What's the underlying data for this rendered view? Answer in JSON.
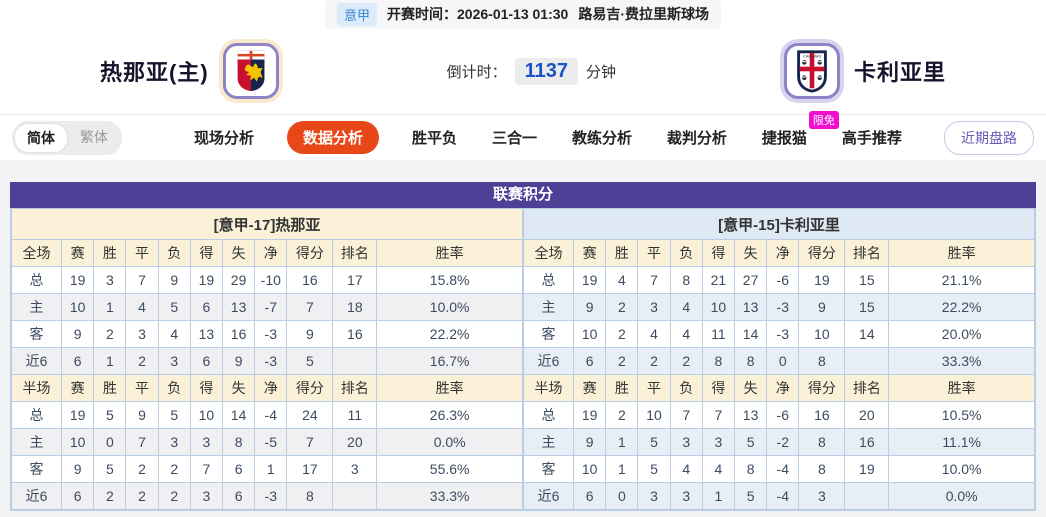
{
  "top_bar": {
    "league": "意甲",
    "kickoff_label": "开赛时间：",
    "kickoff_time": "2026-01-13 01:30",
    "venue": "路易吉·费拉里斯球场"
  },
  "header": {
    "home_team": "热那亚(主)",
    "away_team": "卡利亚里",
    "countdown_label": "倒计时：",
    "countdown_value": "1137",
    "countdown_unit": "分钟"
  },
  "nav": {
    "lang": [
      "简体",
      "繁体"
    ],
    "tabs": [
      {
        "label": "现场分析",
        "active": false
      },
      {
        "label": "数据分析",
        "active": true
      },
      {
        "label": "胜平负",
        "active": false
      },
      {
        "label": "三合一",
        "active": false
      },
      {
        "label": "教练分析",
        "active": false
      },
      {
        "label": "裁判分析",
        "active": false
      },
      {
        "label": "捷报猫",
        "active": false,
        "badge": "限免"
      },
      {
        "label": "高手推荐",
        "active": false
      }
    ],
    "recent_button": "近期盘路"
  },
  "table": {
    "title": "联赛积分",
    "columns": [
      "赛",
      "胜",
      "平",
      "负",
      "得",
      "失",
      "净",
      "得分",
      "排名",
      "胜率"
    ],
    "home": {
      "subtitle": "[意甲-17]热那亚",
      "sections": [
        {
          "scope": "全场",
          "rows": [
            {
              "label": "总",
              "values": [
                "19",
                "3",
                "7",
                "9",
                "19",
                "29",
                "-10",
                "16",
                "17",
                "15.8%"
              ]
            },
            {
              "label": "主",
              "values": [
                "10",
                "1",
                "4",
                "5",
                "6",
                "13",
                "-7",
                "7",
                "18",
                "10.0%"
              ]
            },
            {
              "label": "客",
              "values": [
                "9",
                "2",
                "3",
                "4",
                "13",
                "16",
                "-3",
                "9",
                "16",
                "22.2%"
              ]
            },
            {
              "label": "近6",
              "values": [
                "6",
                "1",
                "2",
                "3",
                "6",
                "9",
                "-3",
                "5",
                "",
                "16.7%"
              ]
            }
          ]
        },
        {
          "scope": "半场",
          "rows": [
            {
              "label": "总",
              "values": [
                "19",
                "5",
                "9",
                "5",
                "10",
                "14",
                "-4",
                "24",
                "11",
                "26.3%"
              ]
            },
            {
              "label": "主",
              "values": [
                "10",
                "0",
                "7",
                "3",
                "3",
                "8",
                "-5",
                "7",
                "20",
                "0.0%"
              ]
            },
            {
              "label": "客",
              "values": [
                "9",
                "5",
                "2",
                "2",
                "7",
                "6",
                "1",
                "17",
                "3",
                "55.6%"
              ]
            },
            {
              "label": "近6",
              "values": [
                "6",
                "2",
                "2",
                "2",
                "3",
                "6",
                "-3",
                "8",
                "",
                "33.3%"
              ]
            }
          ]
        }
      ]
    },
    "away": {
      "subtitle": "[意甲-15]卡利亚里",
      "sections": [
        {
          "scope": "全场",
          "rows": [
            {
              "label": "总",
              "values": [
                "19",
                "4",
                "7",
                "8",
                "21",
                "27",
                "-6",
                "19",
                "15",
                "21.1%"
              ]
            },
            {
              "label": "主",
              "values": [
                "9",
                "2",
                "3",
                "4",
                "10",
                "13",
                "-3",
                "9",
                "15",
                "22.2%"
              ]
            },
            {
              "label": "客",
              "values": [
                "10",
                "2",
                "4",
                "4",
                "11",
                "14",
                "-3",
                "10",
                "14",
                "20.0%"
              ]
            },
            {
              "label": "近6",
              "values": [
                "6",
                "2",
                "2",
                "2",
                "8",
                "8",
                "0",
                "8",
                "",
                "33.3%"
              ]
            }
          ]
        },
        {
          "scope": "半场",
          "rows": [
            {
              "label": "总",
              "values": [
                "19",
                "2",
                "10",
                "7",
                "7",
                "13",
                "-6",
                "16",
                "20",
                "10.5%"
              ]
            },
            {
              "label": "主",
              "values": [
                "9",
                "1",
                "5",
                "3",
                "3",
                "5",
                "-2",
                "8",
                "16",
                "11.1%"
              ]
            },
            {
              "label": "客",
              "values": [
                "10",
                "1",
                "5",
                "4",
                "4",
                "8",
                "-4",
                "8",
                "19",
                "10.0%"
              ]
            },
            {
              "label": "近6",
              "values": [
                "6",
                "0",
                "3",
                "3",
                "1",
                "5",
                "-4",
                "3",
                "",
                "0.0%"
              ]
            }
          ]
        }
      ]
    }
  },
  "colors": {
    "accent": "#e84717",
    "purple": "#4c4197",
    "home_label_red": "#dc2016",
    "away_label_blue": "#1e3ad2",
    "countdown_blue": "#1b52c8"
  }
}
